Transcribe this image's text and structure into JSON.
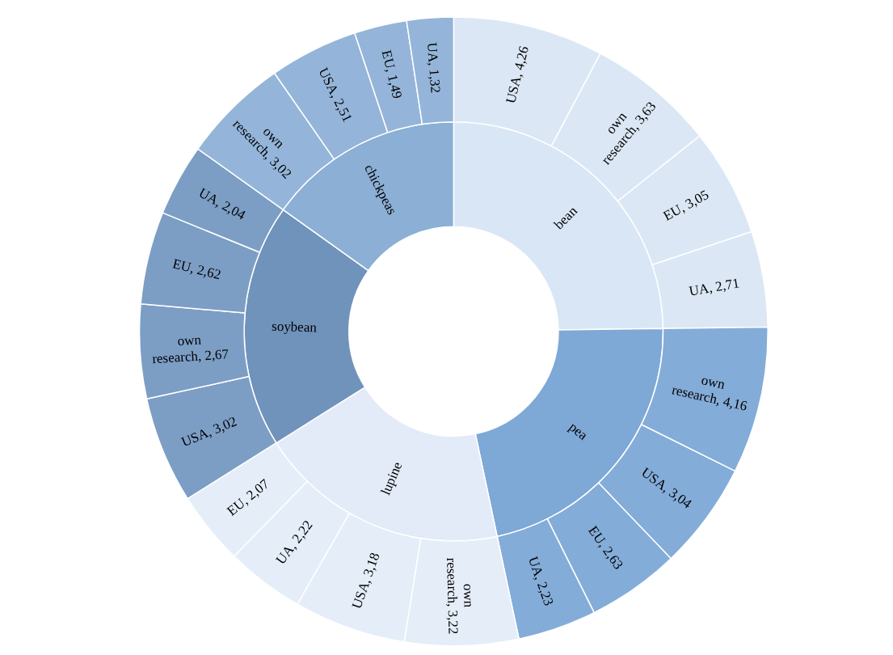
{
  "chart_data": [
    {
      "type": "donut",
      "categories": [
        "bean",
        "pea",
        "lupine",
        "soybean",
        "chickpeas"
      ],
      "values": [
        24.78,
        21.89,
        19.4,
        18.79,
        15.14
      ],
      "colors": [
        "#d9e6f5",
        "#7ea8d6",
        "#e2ebf7",
        "#7093bc",
        "#8bafd5"
      ]
    },
    {
      "type": "donut",
      "categories": [
        "USA, 4,26",
        "own\nresearch, 3,63",
        "EU, 3,05",
        "UA, 2,71",
        "own\nresearch, 4,16",
        "USA, 3,04",
        "EU, 2,63",
        "UA, 2,23",
        "own\nresearch, 3,22",
        "USA, 3,18",
        "UA, 2,22",
        "EU, 2,07",
        "USA, 3,02",
        "own\nresearch, 2,67",
        "EU, 2,62",
        "UA, 2,04",
        "own\nresearch, 3,02",
        "USA, 2,51",
        "EU, 1,49",
        "UA, 1,32"
      ],
      "values": [
        4.26,
        3.63,
        3.05,
        2.71,
        4.16,
        3.04,
        2.63,
        2.23,
        3.22,
        3.18,
        2.22,
        2.07,
        3.02,
        2.67,
        2.62,
        2.04,
        3.02,
        2.51,
        1.49,
        1.32
      ],
      "colors": [
        "#dbe7f5",
        "#dbe7f5",
        "#dbe7f5",
        "#dbe7f5",
        "#84acd8",
        "#84acd8",
        "#84acd8",
        "#84acd8",
        "#e5edf8",
        "#e5edf8",
        "#e5edf8",
        "#e5edf8",
        "#7c9ec5",
        "#7c9ec5",
        "#7c9ec5",
        "#7c9ec5",
        "#94b5d9",
        "#94b5d9",
        "#94b5d9",
        "#94b5d9"
      ]
    }
  ]
}
